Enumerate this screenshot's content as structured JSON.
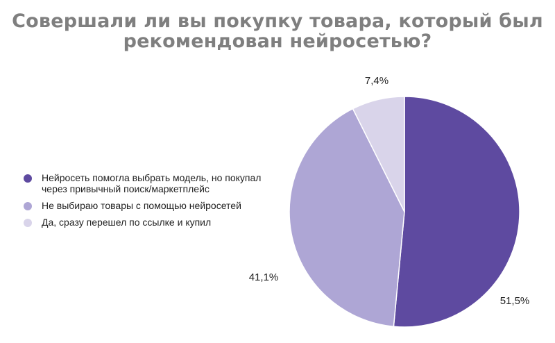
{
  "title": "Совершали ли вы покупку товара, который был рекомендован нейросетью?",
  "chart_data": {
    "type": "pie",
    "title": "Совершали ли вы покупку товара, который был рекомендован нейросетью?",
    "start_angle": "12 o'clock, clockwise",
    "legend_position": "left",
    "slices": [
      {
        "label": "Нейросеть помогла выбрать модель, но покупал через привычный поиск/маркетплейс",
        "value": 51.5,
        "value_label": "51,5%",
        "color": "#5e4aa0"
      },
      {
        "label": "Не выбираю товары с помощью нейросетей",
        "value": 41.1,
        "value_label": "41,1%",
        "color": "#aea6d5"
      },
      {
        "label": "Да, сразу перешел по ссылке и купил",
        "value": 7.4,
        "value_label": "7,4%",
        "color": "#d9d4ea"
      }
    ]
  }
}
